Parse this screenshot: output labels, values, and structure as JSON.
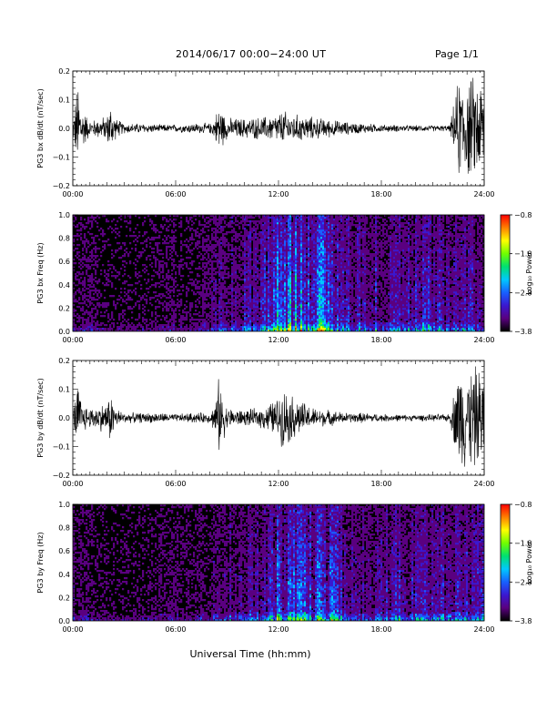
{
  "header": {
    "title": "2014/06/17  00:00−24:00 UT",
    "page": "Page 1/1"
  },
  "xlabel": "Universal Time (hh:mm)",
  "colors": {
    "trace": "#000000",
    "background": "#ffffff",
    "colormap": [
      "#000000",
      "#5a0080",
      "#3a18d0",
      "#1860ff",
      "#00c8ff",
      "#00e070",
      "#70ff00",
      "#ffff00",
      "#ff8000",
      "#ff0000"
    ]
  },
  "chart_data": [
    {
      "type": "line",
      "ylabel": "PG3 bx dB/dt (nT/sec)",
      "xlim": [
        0,
        24
      ],
      "ylim": [
        -0.2,
        0.2
      ],
      "x_ticks": [
        "00:00",
        "06:00",
        "12:00",
        "18:00",
        "24:00"
      ],
      "y_ticks": [
        "−0.2",
        "−0.1",
        "0.0",
        "0.1",
        "0.2"
      ],
      "series": [
        {
          "x_hours": [
            0,
            0.3,
            0.5,
            1,
            1.5,
            2,
            2.2,
            2.5,
            3,
            4,
            5,
            6,
            7,
            8,
            8.3,
            8.5,
            9,
            10,
            11,
            11.5,
            12,
            12.3,
            12.6,
            13,
            13.5,
            14,
            15,
            16,
            17,
            18,
            20,
            22,
            22.5,
            23,
            23.5,
            24
          ],
          "envelope": [
            0.02,
            0.2,
            0.09,
            0.03,
            0.04,
            0.05,
            0.1,
            0.04,
            0.02,
            0.02,
            0.015,
            0.015,
            0.02,
            0.02,
            0.04,
            0.1,
            0.04,
            0.04,
            0.045,
            0.05,
            0.06,
            0.07,
            0.06,
            0.055,
            0.05,
            0.045,
            0.035,
            0.025,
            0.02,
            0.015,
            0.012,
            0.012,
            0.2,
            0.2,
            0.2,
            0.2
          ]
        }
      ]
    },
    {
      "type": "heatmap",
      "ylabel": "PG3 bx Freq (Hz)",
      "xlim": [
        0,
        24
      ],
      "ylim": [
        0,
        1
      ],
      "x_ticks": [
        "00:00",
        "06:00",
        "12:00",
        "18:00",
        "24:00"
      ],
      "y_ticks": [
        "0.0",
        "0.2",
        "0.4",
        "0.6",
        "0.8",
        "1.0"
      ],
      "colorbar": {
        "label": "Log₁₀ Power",
        "range": [
          -3.8,
          -0.8
        ],
        "ticks": [
          "−0.8",
          "−1.8",
          "−2.8",
          "−3.8"
        ]
      },
      "activity_hours": [
        0,
        1,
        2,
        3,
        4,
        5,
        6,
        7,
        8,
        9,
        10,
        11,
        12,
        13,
        14,
        15,
        16,
        17,
        18,
        19,
        20,
        21,
        22,
        23,
        24
      ],
      "activity_level": [
        0.25,
        0.2,
        0.1,
        0.1,
        0.1,
        0.15,
        0.2,
        0.15,
        0.25,
        0.35,
        0.4,
        0.5,
        0.75,
        0.75,
        0.75,
        0.75,
        0.45,
        0.45,
        0.5,
        0.5,
        0.5,
        0.5,
        0.45,
        0.45,
        0.45
      ]
    },
    {
      "type": "line",
      "ylabel": "PG3 by dB/dt (nT/sec)",
      "xlim": [
        0,
        24
      ],
      "ylim": [
        -0.2,
        0.2
      ],
      "x_ticks": [
        "00:00",
        "06:00",
        "12:00",
        "18:00",
        "24:00"
      ],
      "y_ticks": [
        "−0.2",
        "−0.1",
        "0.0",
        "0.1",
        "0.2"
      ],
      "series": [
        {
          "x_hours": [
            0,
            0.3,
            0.5,
            1,
            1.5,
            2,
            2.2,
            2.5,
            3,
            4,
            5,
            6,
            7,
            8,
            8.3,
            8.5,
            9,
            10,
            11,
            11.5,
            12,
            12.3,
            12.6,
            13,
            13.5,
            14,
            15,
            16,
            17,
            18,
            20,
            22,
            22.5,
            23,
            23.5,
            24
          ],
          "envelope": [
            0.02,
            0.15,
            0.06,
            0.04,
            0.05,
            0.06,
            0.1,
            0.04,
            0.02,
            0.02,
            0.02,
            0.015,
            0.02,
            0.02,
            0.06,
            0.15,
            0.04,
            0.03,
            0.04,
            0.06,
            0.08,
            0.12,
            0.1,
            0.08,
            0.06,
            0.04,
            0.03,
            0.02,
            0.02,
            0.015,
            0.012,
            0.015,
            0.2,
            0.2,
            0.2,
            0.2
          ]
        }
      ]
    },
    {
      "type": "heatmap",
      "ylabel": "PG3 by Freq (Hz)",
      "xlim": [
        0,
        24
      ],
      "ylim": [
        0,
        1
      ],
      "x_ticks": [
        "00:00",
        "06:00",
        "12:00",
        "18:00",
        "24:00"
      ],
      "y_ticks": [
        "0.0",
        "0.2",
        "0.4",
        "0.6",
        "0.8",
        "1.0"
      ],
      "colorbar": {
        "label": "Log₁₀ Power",
        "range": [
          -3.8,
          -0.8
        ],
        "ticks": [
          "−0.8",
          "−1.8",
          "−2.8",
          "−3.8"
        ]
      },
      "activity_hours": [
        0,
        1,
        2,
        3,
        4,
        5,
        6,
        7,
        8,
        9,
        10,
        11,
        12,
        13,
        14,
        15,
        16,
        17,
        18,
        19,
        20,
        21,
        22,
        23,
        24
      ],
      "activity_level": [
        0.25,
        0.2,
        0.1,
        0.1,
        0.1,
        0.15,
        0.2,
        0.15,
        0.25,
        0.3,
        0.35,
        0.45,
        0.65,
        0.65,
        0.65,
        0.65,
        0.45,
        0.4,
        0.45,
        0.45,
        0.45,
        0.45,
        0.4,
        0.45,
        0.45
      ]
    }
  ]
}
